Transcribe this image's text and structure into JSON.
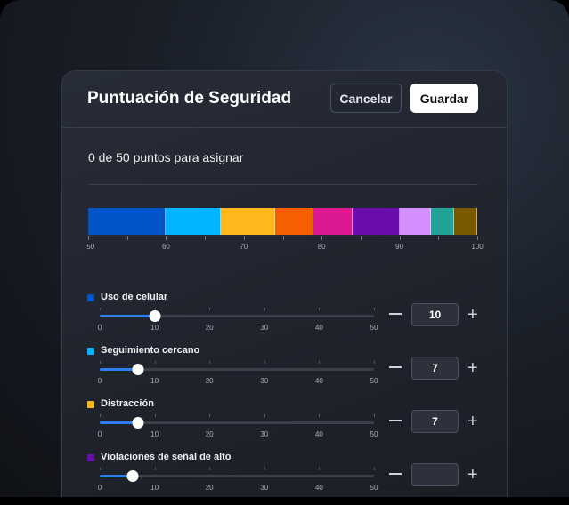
{
  "header": {
    "title": "Puntuación de Seguridad",
    "cancel_label": "Cancelar",
    "save_label": "Guardar"
  },
  "remaining_text": "0 de 50 puntos para asignar",
  "distribution_bar": {
    "axis_min": 50,
    "axis_max": 100,
    "ticks": [
      "50",
      "60",
      "70",
      "80",
      "90",
      "100"
    ]
  },
  "slider_ticks": [
    "0",
    "10",
    "20",
    "30",
    "40",
    "50"
  ],
  "slider_max": 50,
  "categories": [
    {
      "label": "Uso de celular",
      "value": 10,
      "value_text": "10",
      "color": "#0055c8"
    },
    {
      "label": "Seguimiento cercano",
      "value": 7,
      "value_text": "7",
      "color": "#00b4ff"
    },
    {
      "label": "Distracción",
      "value": 7,
      "value_text": "7",
      "color": "#ffb81c"
    },
    {
      "label": "Violaciones de señal de alto",
      "value": 6,
      "color": "#6a0dad"
    }
  ],
  "other_segments": [
    {
      "value": 5,
      "color": "#dc1890"
    },
    {
      "value": 5,
      "color": "#f55f00"
    },
    {
      "value": 4,
      "color": "#d48fff"
    },
    {
      "value": 3,
      "color": "#22a398"
    },
    {
      "value": 3,
      "color": "#7a5800"
    }
  ],
  "icons": {
    "decrement": "minus-icon",
    "increment": "plus-icon"
  }
}
